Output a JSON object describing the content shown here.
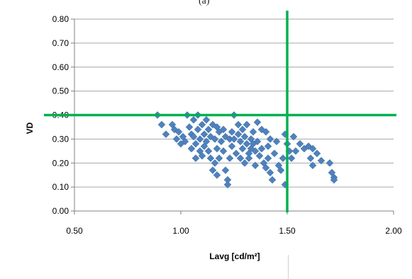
{
  "panel_label": "(a)",
  "colors": {
    "marker": "#4F81BD",
    "threshold": "#00B050",
    "grid": "#A6A6A6",
    "axis": "#808080",
    "text": "#000000"
  },
  "chart_data": {
    "type": "scatter",
    "title": "",
    "xlabel": "Lavg [cd/m²]",
    "ylabel": "VD",
    "xlim": [
      0.5,
      2.0
    ],
    "ylim": [
      0.0,
      0.8
    ],
    "x_ticks": [
      "0.50",
      "1.00",
      "1.50",
      "2.00"
    ],
    "y_ticks": [
      "0.00",
      "0.10",
      "0.20",
      "0.30",
      "0.40",
      "0.50",
      "0.60",
      "0.70",
      "0.80"
    ],
    "grid": "horizontal",
    "legend": "none",
    "marker": "diamond",
    "reference_lines": [
      {
        "orientation": "vertical",
        "x": 1.5
      },
      {
        "orientation": "horizontal",
        "y": 0.4
      }
    ],
    "series": [
      {
        "points": [
          [
            0.89,
            0.4
          ],
          [
            0.91,
            0.36
          ],
          [
            0.93,
            0.32
          ],
          [
            0.96,
            0.36
          ],
          [
            0.97,
            0.34
          ],
          [
            0.98,
            0.3
          ],
          [
            0.99,
            0.33
          ],
          [
            1.0,
            0.28
          ],
          [
            1.01,
            0.31
          ],
          [
            1.02,
            0.29
          ],
          [
            1.03,
            0.4
          ],
          [
            1.04,
            0.35
          ],
          [
            1.05,
            0.32
          ],
          [
            1.05,
            0.26
          ],
          [
            1.06,
            0.38
          ],
          [
            1.06,
            0.31
          ],
          [
            1.07,
            0.28
          ],
          [
            1.07,
            0.22
          ],
          [
            1.08,
            0.4
          ],
          [
            1.08,
            0.34
          ],
          [
            1.09,
            0.3
          ],
          [
            1.09,
            0.25
          ],
          [
            1.1,
            0.36
          ],
          [
            1.1,
            0.23
          ],
          [
            1.11,
            0.32
          ],
          [
            1.11,
            0.27
          ],
          [
            1.12,
            0.38
          ],
          [
            1.12,
            0.29
          ],
          [
            1.13,
            0.34
          ],
          [
            1.13,
            0.25
          ],
          [
            1.14,
            0.31
          ],
          [
            1.14,
            0.22
          ],
          [
            1.15,
            0.36
          ],
          [
            1.15,
            0.17
          ],
          [
            1.16,
            0.3
          ],
          [
            1.16,
            0.2
          ],
          [
            1.17,
            0.35
          ],
          [
            1.17,
            0.26
          ],
          [
            1.17,
            0.15
          ],
          [
            1.18,
            0.33
          ],
          [
            1.18,
            0.22
          ],
          [
            1.19,
            0.29
          ],
          [
            1.2,
            0.34
          ],
          [
            1.2,
            0.25
          ],
          [
            1.21,
            0.31
          ],
          [
            1.21,
            0.17
          ],
          [
            1.22,
            0.13
          ],
          [
            1.22,
            0.11
          ],
          [
            1.23,
            0.3
          ],
          [
            1.23,
            0.22
          ],
          [
            1.24,
            0.33
          ],
          [
            1.24,
            0.27
          ],
          [
            1.25,
            0.4
          ],
          [
            1.25,
            0.3
          ],
          [
            1.26,
            0.24
          ],
          [
            1.27,
            0.36
          ],
          [
            1.27,
            0.32
          ],
          [
            1.28,
            0.29
          ],
          [
            1.28,
            0.22
          ],
          [
            1.29,
            0.34
          ],
          [
            1.29,
            0.26
          ],
          [
            1.3,
            0.31
          ],
          [
            1.3,
            0.2
          ],
          [
            1.31,
            0.36
          ],
          [
            1.31,
            0.28
          ],
          [
            1.32,
            0.24
          ],
          [
            1.32,
            0.22
          ],
          [
            1.33,
            0.3
          ],
          [
            1.33,
            0.26
          ],
          [
            1.34,
            0.33
          ],
          [
            1.34,
            0.28
          ],
          [
            1.35,
            0.25
          ],
          [
            1.35,
            0.19
          ],
          [
            1.36,
            0.37
          ],
          [
            1.36,
            0.29
          ],
          [
            1.37,
            0.23
          ],
          [
            1.38,
            0.34
          ],
          [
            1.38,
            0.26
          ],
          [
            1.39,
            0.2
          ],
          [
            1.4,
            0.33
          ],
          [
            1.4,
            0.18
          ],
          [
            1.41,
            0.27
          ],
          [
            1.41,
            0.22
          ],
          [
            1.42,
            0.3
          ],
          [
            1.42,
            0.16
          ],
          [
            1.43,
            0.13
          ],
          [
            1.44,
            0.24
          ],
          [
            1.45,
            0.29
          ],
          [
            1.46,
            0.19
          ],
          [
            1.47,
            0.17
          ],
          [
            1.48,
            0.22
          ],
          [
            1.49,
            0.11
          ],
          [
            1.49,
            0.32
          ],
          [
            1.5,
            0.28
          ],
          [
            1.51,
            0.25
          ],
          [
            1.52,
            0.22
          ],
          [
            1.53,
            0.31
          ],
          [
            1.54,
            0.25
          ],
          [
            1.56,
            0.28
          ],
          [
            1.58,
            0.26
          ],
          [
            1.6,
            0.27
          ],
          [
            1.61,
            0.22
          ],
          [
            1.62,
            0.19
          ],
          [
            1.62,
            0.26
          ],
          [
            1.64,
            0.24
          ],
          [
            1.66,
            0.21
          ],
          [
            1.7,
            0.2
          ],
          [
            1.71,
            0.16
          ],
          [
            1.72,
            0.14
          ],
          [
            1.72,
            0.13
          ]
        ]
      }
    ]
  }
}
